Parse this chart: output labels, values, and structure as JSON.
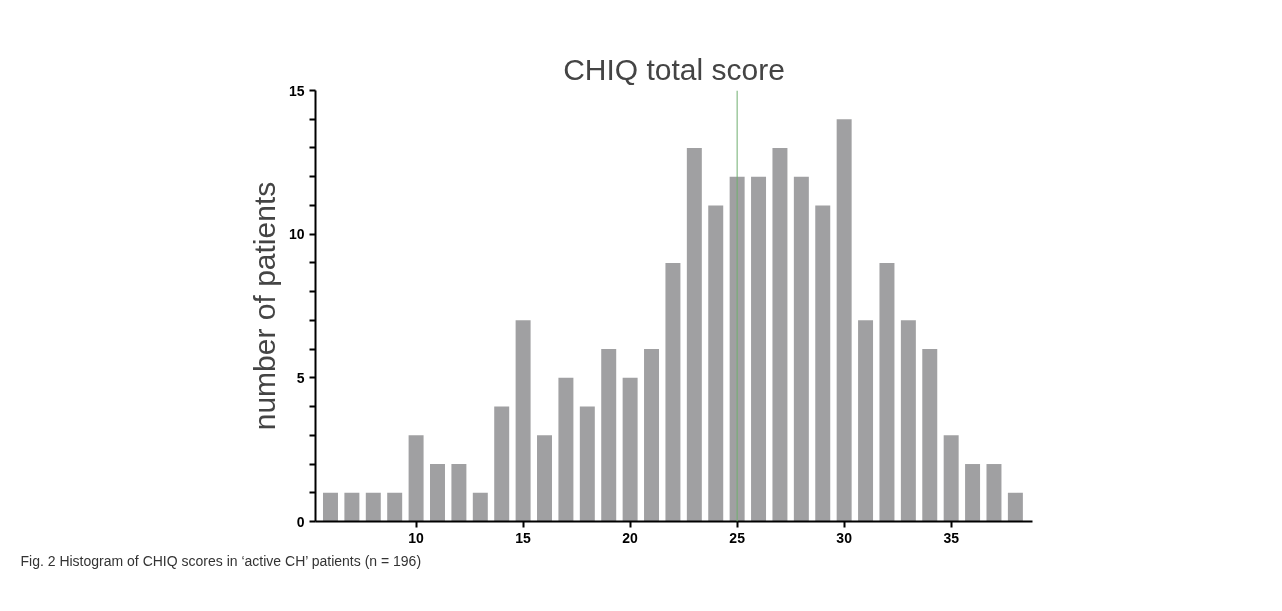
{
  "chart_data": {
    "type": "histogram",
    "title": "CHIQ total score",
    "ylabel": "number of patients",
    "bins": [
      5.5,
      6.5,
      7.5,
      8.5,
      9.5,
      10.5,
      11.5,
      12.5,
      13.5,
      14.5,
      15.5,
      16.5,
      17.5,
      18.5,
      19.5,
      20.5,
      21.5,
      22.5,
      23.5,
      24.5,
      25.5,
      26.5,
      27.5,
      28.5,
      29.5,
      30.5,
      31.5,
      32.5,
      33.5,
      34.5,
      35.5,
      36.5,
      37.5,
      38.5
    ],
    "values": [
      1,
      1,
      1,
      1,
      3,
      2,
      2,
      1,
      4,
      7,
      3,
      5,
      4,
      6,
      5,
      6,
      9,
      13,
      11,
      12,
      12,
      13,
      12,
      11,
      14,
      7,
      9,
      7,
      6,
      3,
      2,
      2,
      1
    ],
    "color": "#a0a0a2",
    "xlim": [
      5.3,
      38.8
    ],
    "xticks": [
      10,
      15,
      20,
      25,
      30,
      35
    ],
    "ylim": [
      0,
      15
    ],
    "yticks": [
      0,
      {
        "value": 1,
        "label": null
      },
      {
        "value": 2,
        "label": null
      },
      {
        "value": 3,
        "label": null
      },
      {
        "value": 4,
        "label": null
      },
      5,
      {
        "value": 6,
        "label": null
      },
      {
        "value": 7,
        "label": null
      },
      {
        "value": 8,
        "label": null
      },
      {
        "value": 9,
        "label": null
      },
      10,
      {
        "value": 11,
        "label": null
      },
      {
        "value": 12,
        "label": null
      },
      {
        "value": 13,
        "label": null
      },
      {
        "value": 14,
        "label": null
      },
      15
    ],
    "ref_lines": [
      {
        "axis": "x",
        "value": 25,
        "color": "#6fae6f"
      }
    ],
    "grid": false,
    "annotations": [
      "Fig. 2  Histogram of CHIQ scores in ‘active CH’ patients (n = 196)"
    ]
  }
}
